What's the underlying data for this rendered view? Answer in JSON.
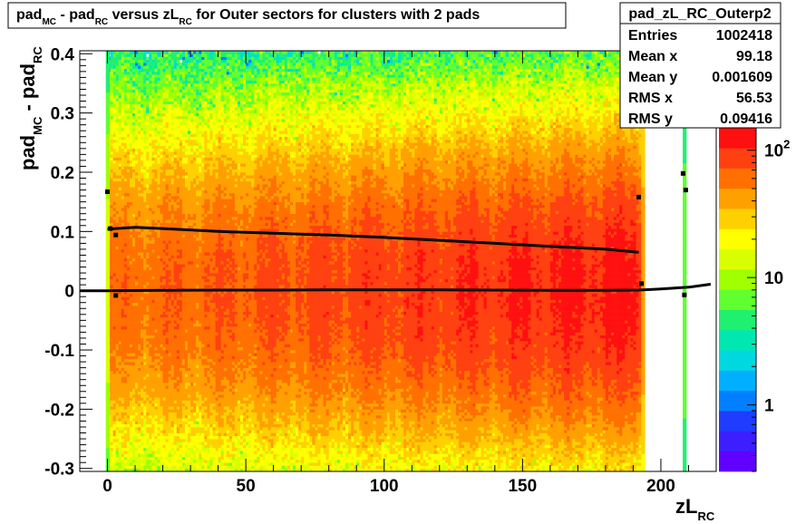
{
  "title": {
    "p1": "pad",
    "s1": "MC",
    "p2": " - pad",
    "s2": "RC",
    "p3": " versus zL",
    "s3": "RC",
    "p4": " for Outer sectors for clusters with 2 pads"
  },
  "stats": {
    "name": "pad_zL_RC_Outerp2",
    "rows": [
      {
        "label": "Entries",
        "value": "1002418"
      },
      {
        "label": "Mean x",
        "value": "99.18"
      },
      {
        "label": "Mean y",
        "value": "0.001609"
      },
      {
        "label": "RMS x",
        "value": "56.53"
      },
      {
        "label": "RMS y",
        "value": "0.09416"
      }
    ]
  },
  "colors": {
    "palette": [
      "#6000ff",
      "#3c1fff",
      "#1f3cff",
      "#0080ff",
      "#00b0ff",
      "#00d8e0",
      "#00e8b0",
      "#20f070",
      "#60ff30",
      "#a0ff00",
      "#d8ff00",
      "#ffff00",
      "#ffd000",
      "#ffa000",
      "#ff7000",
      "#ff4010",
      "#ff1010"
    ],
    "profile": "#000000"
  },
  "chart_data": {
    "type": "heatmap",
    "title": "pad_MC - pad_RC versus zL_RC for Outer sectors for clusters with 2 pads",
    "xlabel": {
      "main": "zL",
      "sub": "RC"
    },
    "ylabel": {
      "p1": "pad",
      "s1": "MC",
      "p2": " - pad",
      "s2": "RC"
    },
    "xlim": [
      -10,
      220
    ],
    "ylim": [
      -0.305,
      0.405
    ],
    "x_ticks": [
      {
        "value": 0,
        "label": "0"
      },
      {
        "value": 50,
        "label": "50"
      },
      {
        "value": 100,
        "label": "100"
      },
      {
        "value": 150,
        "label": "150"
      },
      {
        "value": 200,
        "label": "200"
      }
    ],
    "y_ticks": [
      {
        "value": -0.3,
        "label": "-0.3"
      },
      {
        "value": -0.2,
        "label": "-0.2"
      },
      {
        "value": -0.1,
        "label": "-0.1"
      },
      {
        "value": 0,
        "label": "0"
      },
      {
        "value": 0.1,
        "label": "0.1"
      },
      {
        "value": 0.2,
        "label": "0.2"
      },
      {
        "value": 0.3,
        "label": "0.3"
      },
      {
        "value": 0.4,
        "label": "0.4"
      }
    ],
    "z_scale": "log",
    "zlim": [
      0.3,
      150
    ],
    "z_ticks": [
      {
        "value": 1,
        "label": "1"
      },
      {
        "value": 10,
        "label": "10"
      },
      {
        "value": 100,
        "label": "10",
        "sup": "2"
      }
    ],
    "density_model": {
      "x_range": [
        0,
        193
      ],
      "peak_at_x0": 60,
      "peak_at_xmax": 120,
      "y_sigma": 0.17,
      "extra_columns": [
        {
          "x": 0,
          "value": 14
        },
        {
          "x": 193.5,
          "value": 45
        },
        {
          "x": 208.5,
          "value": 8
        }
      ]
    },
    "profiles": [
      {
        "name": "mean",
        "x": [
          -10,
          0,
          20,
          40,
          60,
          80,
          100,
          120,
          140,
          160,
          180,
          192,
          200,
          210,
          218
        ],
        "y": [
          0,
          0,
          0.0005,
          0.001,
          0.001,
          0.0015,
          0.0015,
          0.0015,
          0.001,
          0.0005,
          0.0005,
          0.001,
          0.003,
          0.006,
          0.011
        ]
      },
      {
        "name": "rms",
        "x": [
          0,
          10,
          20,
          40,
          60,
          80,
          100,
          120,
          140,
          160,
          180,
          192
        ],
        "y": [
          0.104,
          0.107,
          0.105,
          0.1,
          0.097,
          0.094,
          0.09,
          0.085,
          0.08,
          0.075,
          0.07,
          0.065
        ]
      }
    ],
    "markers": [
      {
        "x": 0,
        "y": 0.167
      },
      {
        "x": 1,
        "y": 0.105
      },
      {
        "x": 3,
        "y": 0.094
      },
      {
        "x": 3,
        "y": -0.008
      },
      {
        "x": 192,
        "y": 0.158
      },
      {
        "x": 193,
        "y": 0.012
      },
      {
        "x": 208,
        "y": 0.198
      },
      {
        "x": 208.5,
        "y": -0.007
      },
      {
        "x": 209,
        "y": 0.17
      }
    ]
  }
}
